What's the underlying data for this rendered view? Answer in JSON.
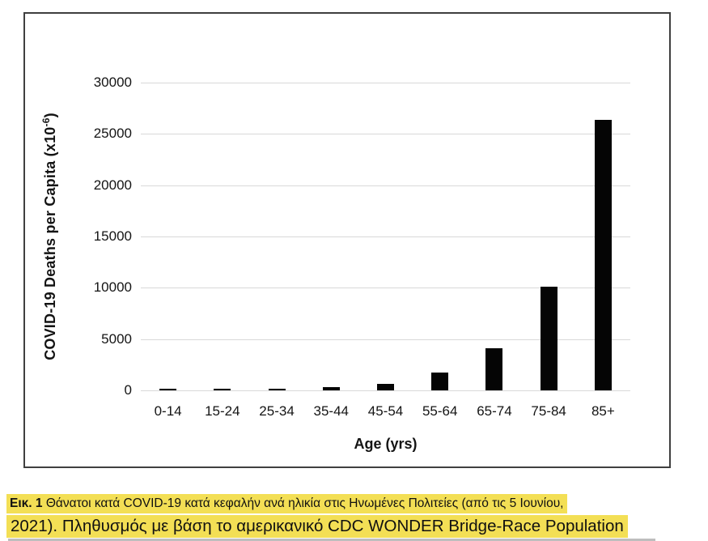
{
  "chart_data": {
    "type": "bar",
    "title": "",
    "xlabel": "Age (yrs)",
    "ylabel": "COVID-19 Deaths per Capita (x10-6)",
    "ylabel_base": "COVID-19 Deaths per Capita (x10",
    "ylabel_sup": "-6",
    "ylabel_close": ")",
    "categories": [
      "0-14",
      "15-24",
      "25-34",
      "35-44",
      "45-54",
      "55-64",
      "65-74",
      "75-84",
      "85+"
    ],
    "values": [
      30,
      80,
      160,
      330,
      650,
      1700,
      4100,
      10100,
      26400
    ],
    "yticks": [
      0,
      5000,
      10000,
      15000,
      20000,
      25000,
      30000
    ],
    "ylim": [
      0,
      30000
    ],
    "grid": true,
    "legend": "none",
    "bar_color": "#050505",
    "gridline_color": "#d9d9d9",
    "axis_text_color": "#141414"
  },
  "caption": {
    "label": "Εικ. 1",
    "line1_rest": " Θάνατοι κατά COVID-19 κατά κεφαλήν ανά ηλικία στις Ηνωμένες Πολιτείες (από τις 5 Ιουνίου,",
    "line2": "2021). Πληθυσμός με βάση το αμερικανικό CDC WONDER Bridge-Race Population",
    "highlight_color": "#f3df55"
  }
}
